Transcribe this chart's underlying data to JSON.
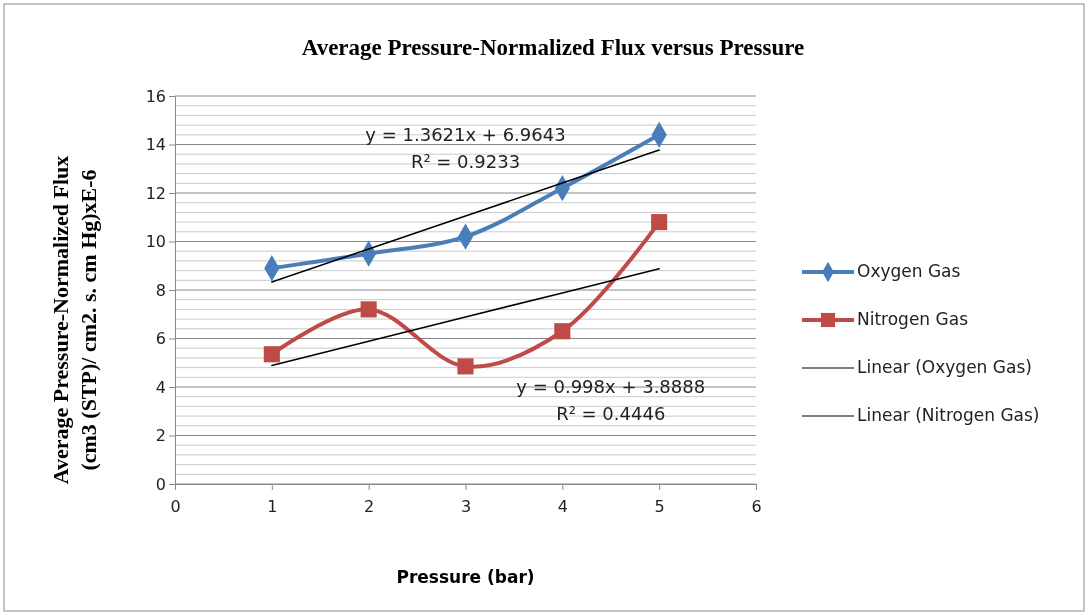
{
  "chart_data": {
    "type": "line",
    "title": "Average Pressure-Normalized Flux versus Pressure",
    "xlabel": "Pressure (bar)",
    "ylabel": "Average Pressure-Normalized Flux (cm3 (STP)/ cm2. s. cm Hg)xE-6",
    "x": [
      1,
      2,
      3,
      4,
      5
    ],
    "series": [
      {
        "name": "Oxygen Gas",
        "color": "#4a7ebb",
        "marker": "diamond",
        "values": [
          8.9,
          9.5,
          10.2,
          12.2,
          14.4
        ]
      },
      {
        "name": "Nitrogen Gas",
        "color": "#be4b48",
        "marker": "square",
        "values": [
          5.35,
          7.2,
          4.85,
          6.3,
          10.8
        ]
      },
      {
        "name": "Linear (Oxygen Gas)",
        "color": "#000000",
        "marker": "none",
        "values": [
          8.33,
          9.69,
          11.05,
          12.41,
          13.77
        ]
      },
      {
        "name": "Linear (Nitrogen Gas)",
        "color": "#000000",
        "marker": "none",
        "values": [
          4.89,
          5.89,
          6.89,
          7.88,
          8.88
        ]
      }
    ],
    "xlim": [
      0,
      6
    ],
    "xticks": [
      0,
      1,
      2,
      3,
      4,
      5,
      6
    ],
    "ylim": [
      0,
      16
    ],
    "yticks": [
      0,
      2,
      4,
      6,
      8,
      10,
      12,
      14,
      16
    ],
    "grid": "y",
    "legend": "right",
    "line_style": "solid",
    "annotations": [
      "y = 1.3621x + 6.9643",
      "R² = 0.9233",
      "y = 0.998x + 3.8888",
      "R² = 0.4446"
    ]
  }
}
